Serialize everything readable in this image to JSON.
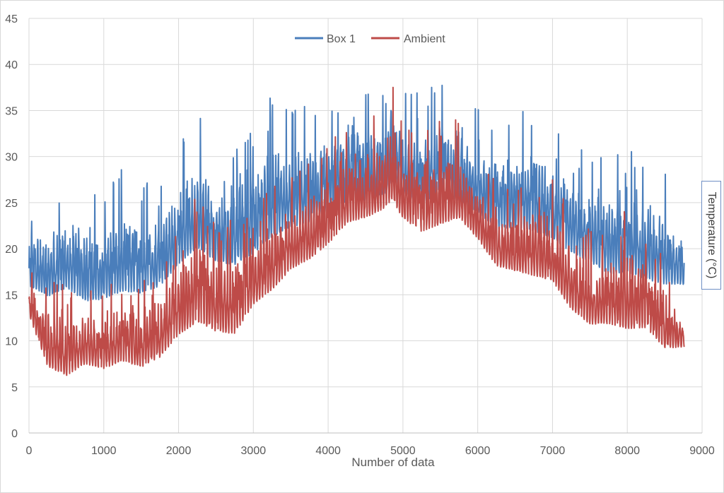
{
  "chart_data": {
    "type": "line",
    "title": "",
    "xlabel": "Number of data",
    "ylabel": "Temperature (°C)",
    "xlim": [
      0,
      9000
    ],
    "ylim": [
      0,
      45
    ],
    "x_ticks": [
      0,
      1000,
      2000,
      3000,
      4000,
      5000,
      6000,
      7000,
      8000,
      9000
    ],
    "y_ticks": [
      0,
      5,
      10,
      15,
      20,
      25,
      30,
      35,
      40,
      45
    ],
    "grid": true,
    "legend_position": "top-center",
    "n_points": 8760,
    "series": [
      {
        "name": "Box 1",
        "color": "#4a7ebb",
        "x": [
          0,
          250,
          500,
          750,
          1000,
          1250,
          1500,
          1750,
          2000,
          2250,
          2500,
          2750,
          3000,
          3250,
          3500,
          3750,
          4000,
          4250,
          4500,
          4750,
          4850,
          5000,
          5250,
          5500,
          5750,
          6000,
          6250,
          6500,
          6750,
          7000,
          7250,
          7500,
          7750,
          8000,
          8250,
          8500,
          8750
        ],
        "min": [
          14.5,
          13,
          13.5,
          12,
          12.5,
          13,
          13,
          14,
          16,
          17.5,
          16.5,
          16,
          17,
          18.5,
          20,
          20.5,
          22,
          23,
          23,
          24,
          25,
          24,
          22.5,
          24,
          23,
          22,
          20,
          20,
          19.5,
          19,
          17.5,
          16.5,
          15,
          15,
          14.5,
          14,
          15
        ],
        "max": [
          24.5,
          25,
          28.5,
          27.5,
          26,
          29,
          27.5,
          27,
          31.5,
          35.2,
          30.5,
          31,
          33.5,
          37,
          36,
          35.5,
          36,
          37.5,
          37.5,
          37,
          40.5,
          37,
          37,
          38.5,
          37.5,
          35.5,
          34.5,
          35,
          35.8,
          33.5,
          31.5,
          30.5,
          30,
          31,
          29,
          28.5,
          22.5
        ]
      },
      {
        "name": "Ambient",
        "color": "#be4b48",
        "x": [
          0,
          250,
          500,
          750,
          1000,
          1250,
          1500,
          1750,
          2000,
          2250,
          2500,
          2750,
          3000,
          3250,
          3500,
          3750,
          4000,
          4250,
          4500,
          4750,
          4850,
          5000,
          5250,
          5500,
          5750,
          6000,
          6250,
          6500,
          6750,
          7000,
          7250,
          7500,
          7750,
          8000,
          8250,
          8500,
          8750
        ],
        "min": [
          12,
          5.5,
          4.5,
          6,
          5.5,
          6,
          5.5,
          6.5,
          8.5,
          9.5,
          9,
          8.5,
          12,
          13.5,
          16,
          17,
          18.5,
          21,
          21.5,
          22.5,
          23,
          21.5,
          20,
          20.5,
          21.5,
          19.5,
          16.5,
          16,
          15,
          14.5,
          11.5,
          10,
          10,
          9,
          9.5,
          7.5,
          8.5
        ],
        "max": [
          17.5,
          17,
          16,
          16,
          15.5,
          18,
          16.5,
          18,
          23,
          26.5,
          22.5,
          23.5,
          25,
          27,
          28,
          29.5,
          32,
          33,
          34,
          35,
          38.5,
          33.5,
          32.5,
          35,
          34,
          30,
          27.5,
          26.5,
          29,
          28,
          24.5,
          22,
          22.5,
          24.5,
          22.5,
          19,
          14
        ]
      }
    ]
  }
}
